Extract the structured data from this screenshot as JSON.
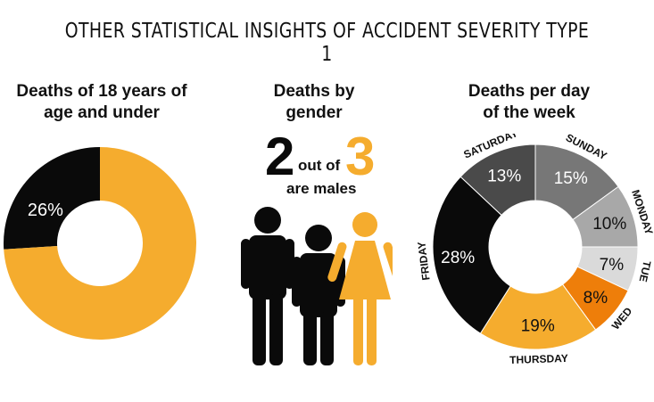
{
  "title": "OTHER STATISTICAL INSIGHTS OF ACCIDENT SEVERITY TYPE 1",
  "panels": {
    "age": {
      "title_line1": "Deaths of 18 years of",
      "title_line2": "age and under"
    },
    "gender": {
      "title_line1": "Deaths by",
      "title_line2": "gender",
      "numerator": "2",
      "out_of": "out of",
      "denominator": "3",
      "caption": "are males"
    },
    "week": {
      "title_line1": "Deaths per day",
      "title_line2": "of the week"
    }
  },
  "colors": {
    "orange": "#F5AC2E",
    "black": "#0A0A0A",
    "dark_orange": "#EE7E0A"
  },
  "chart_data": [
    {
      "type": "pie",
      "style": "donut",
      "slices": [
        {
          "label": "26%",
          "value": 26,
          "color": "#0A0A0A",
          "show_label": true
        },
        {
          "label": "74%",
          "value": 74,
          "color": "#F5AC2E",
          "show_label": false
        }
      ]
    },
    {
      "type": "pie",
      "style": "donut",
      "slices": [
        {
          "category": "SUNDAY",
          "label": "15%",
          "value": 15,
          "color": "#777777",
          "text_color": "#ffffff"
        },
        {
          "category": "MONDAY",
          "label": "10%",
          "value": 10,
          "color": "#A8A8A8",
          "text_color": "#111111"
        },
        {
          "category": "TUE",
          "label": "7%",
          "value": 7,
          "color": "#DADADA",
          "text_color": "#111111"
        },
        {
          "category": "WED",
          "label": "8%",
          "value": 8,
          "color": "#EE7E0A",
          "text_color": "#111111"
        },
        {
          "category": "THURSDAY",
          "label": "19%",
          "value": 19,
          "color": "#F5AC2E",
          "text_color": "#111111"
        },
        {
          "category": "FRIDAY",
          "label": "28%",
          "value": 28,
          "color": "#0A0A0A",
          "text_color": "#ffffff"
        },
        {
          "category": "SATURDAY",
          "label": "13%",
          "value": 13,
          "color": "#4A4A4A",
          "text_color": "#ffffff"
        }
      ]
    }
  ]
}
